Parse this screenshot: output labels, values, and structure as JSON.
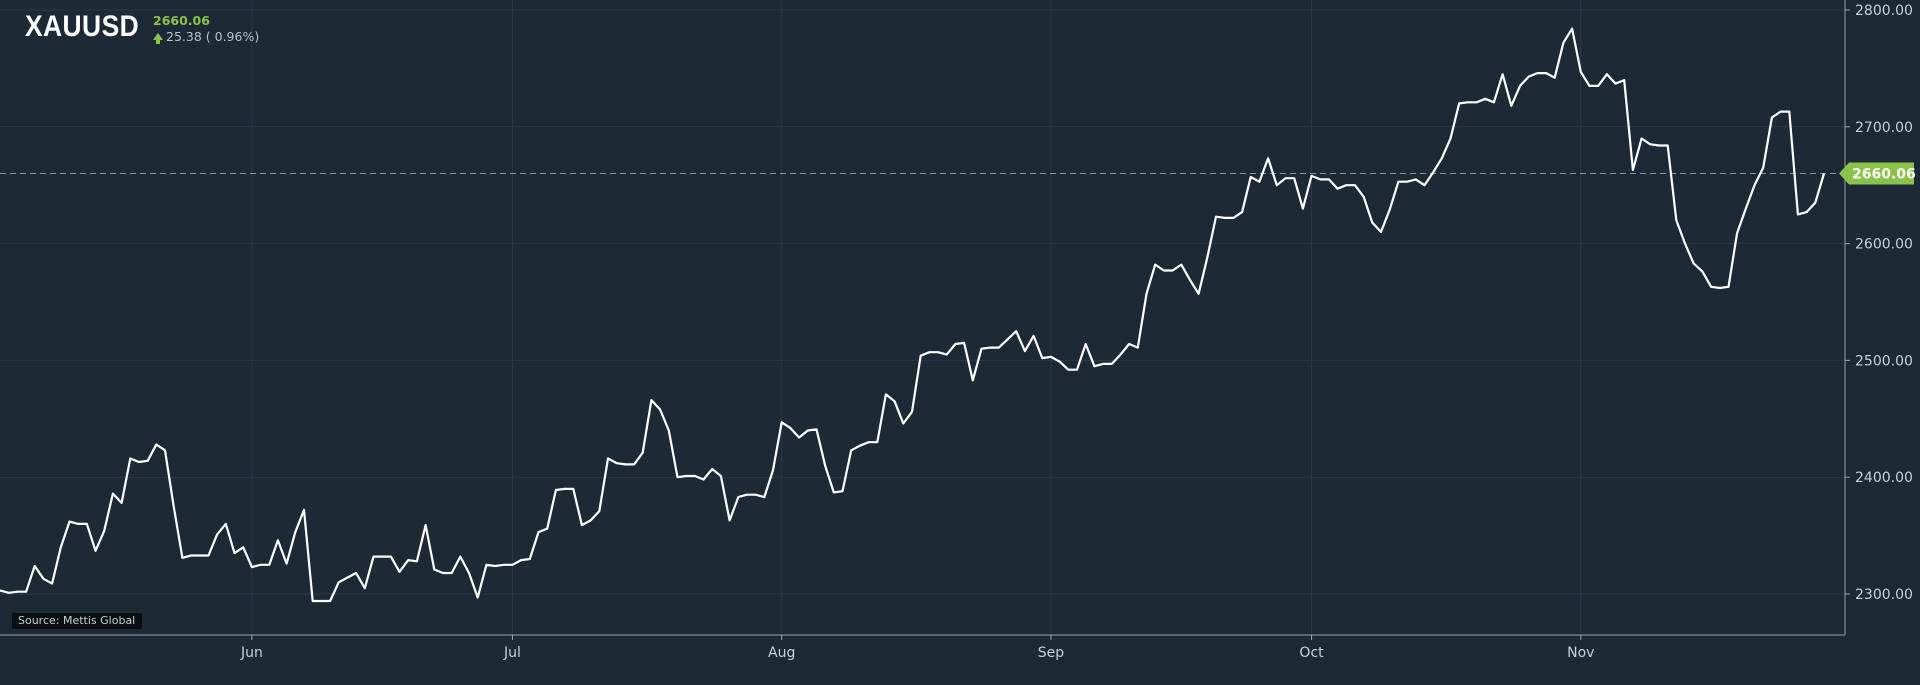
{
  "header": {
    "symbol": "XAUUSD",
    "last_price": "2660.06",
    "change": "25.38",
    "change_pct": "( 0.96%)",
    "arrow_icon": "up-arrow-icon"
  },
  "source_label": "Source: Mettis Global",
  "colors": {
    "background": "#1d2935",
    "line": "#ffffff",
    "grid": "#2b3846",
    "axis": "#9aa4ae",
    "positive": "#8bc34a",
    "last_price_line": "#8a949e"
  },
  "chart_data": {
    "type": "line",
    "title": "XAUUSD",
    "xlabel": "",
    "ylabel": "",
    "grid": true,
    "legend": "none",
    "ylim": [
      2265,
      2815
    ],
    "yticks": [
      2300,
      2400,
      2500,
      2600,
      2700,
      2800
    ],
    "ytick_labels": [
      "2300.00",
      "2400.00",
      "2500.00",
      "2600.00",
      "2700.00",
      "2800.00"
    ],
    "xticks": [
      {
        "label": "Jun",
        "index": 29
      },
      {
        "label": "Jul",
        "index": 59
      },
      {
        "label": "Aug",
        "index": 90
      },
      {
        "label": "Sep",
        "index": 121
      },
      {
        "label": "Oct",
        "index": 151
      },
      {
        "label": "Nov",
        "index": 182
      }
    ],
    "last_value": 2660.06,
    "last_value_label": "2660.06",
    "series": [
      {
        "values": [
          2303,
          2301,
          2302,
          2302,
          2324,
          2313,
          2309,
          2340,
          2362,
          2360,
          2360,
          2337,
          2354,
          2386,
          2378,
          2416,
          2413,
          2414,
          2428,
          2423,
          2375,
          2331,
          2333,
          2333,
          2333,
          2351,
          2360,
          2335,
          2340,
          2323,
          2325,
          2325,
          2346,
          2326,
          2353,
          2372,
          2294,
          2294,
          2294,
          2310,
          2314,
          2318,
          2305,
          2332,
          2332,
          2332,
          2319,
          2329,
          2328,
          2359,
          2321,
          2318,
          2318,
          2332,
          2318,
          2297,
          2325,
          2324,
          2325,
          2325,
          2329,
          2330,
          2353,
          2356,
          2389,
          2390,
          2390,
          2359,
          2363,
          2371,
          2416,
          2412,
          2411,
          2411,
          2421,
          2466,
          2458,
          2440,
          2400,
          2401,
          2401,
          2398,
          2407,
          2401,
          2363,
          2383,
          2385,
          2385,
          2383,
          2406,
          2447,
          2442,
          2434,
          2440,
          2441,
          2410,
          2387,
          2388,
          2423,
          2427,
          2430,
          2430,
          2471,
          2465,
          2446,
          2456,
          2504,
          2507,
          2507,
          2505,
          2514,
          2515,
          2483,
          2510,
          2511,
          2511,
          2518,
          2525,
          2508,
          2521,
          2502,
          2503,
          2499,
          2492,
          2492,
          2514,
          2495,
          2497,
          2497,
          2505,
          2514,
          2511,
          2557,
          2582,
          2577,
          2577,
          2582,
          2569,
          2557,
          2588,
          2623,
          2622,
          2622,
          2627,
          2657,
          2653,
          2673,
          2650,
          2656,
          2656,
          2630,
          2658,
          2655,
          2655,
          2647,
          2650,
          2650,
          2640,
          2618,
          2610,
          2629,
          2653,
          2653,
          2655,
          2650,
          2661,
          2673,
          2690,
          2720,
          2721,
          2721,
          2724,
          2721,
          2745,
          2718,
          2735,
          2743,
          2746,
          2746,
          2742,
          2772,
          2784,
          2747,
          2735,
          2735,
          2745,
          2737,
          2740,
          2663,
          2690,
          2685,
          2684,
          2684,
          2620,
          2600,
          2583,
          2576,
          2563,
          2562,
          2563,
          2609,
          2630,
          2650,
          2665,
          2708,
          2713,
          2713,
          2625,
          2627,
          2635,
          2660
        ]
      }
    ]
  }
}
